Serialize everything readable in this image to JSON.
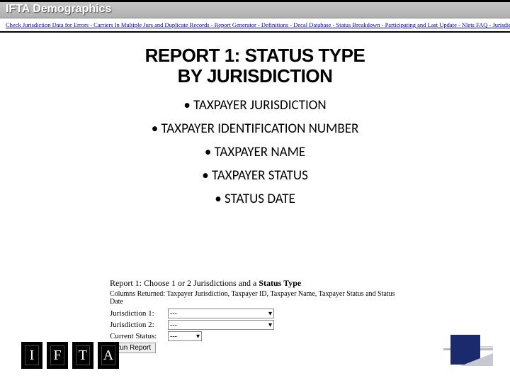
{
  "header": {
    "title": "IFTA Demographics"
  },
  "nav": {
    "text": "Check Jurisdiction Data for Errors - Carriers In Multiple Jurs and Duplicate Records - Report Generator - Definitions - Decal Database - Status Breakdown - Participating and Last Update - Nlets FAQ - Jurisdiction Contact Numbers - Web Services"
  },
  "report": {
    "title_line1": "REPORT 1: STATUS TYPE",
    "title_line2": "BY JURISDICTION",
    "title_fontsize": 26,
    "title_color": "#000000",
    "bullets": [
      "TAXPAYER JURISDICTION",
      "TAXPAYER IDENTIFICATION NUMBER",
      "TAXPAYER NAME",
      "TAXPAYER STATUS",
      "STATUS DATE"
    ],
    "bullet_fontsize": 19
  },
  "form": {
    "heading_prefix": "Report 1: Choose 1 or 2 Jurisdictions and a ",
    "heading_bold": "Status Type",
    "subtitle": "Columns Returned: Taxpayer Jurisdiction, Taxpayer ID, Taxpayer Name, Taxpayer Status and Status Date",
    "rows": [
      {
        "label": "Jurisdiction 1:",
        "value": "---"
      },
      {
        "label": "Jurisdiction 2:",
        "value": "---"
      },
      {
        "label": "Current Status:",
        "value": "---"
      }
    ],
    "button_label": "Run Report"
  },
  "logo": {
    "letters": [
      "I",
      "F",
      "T",
      "A"
    ]
  },
  "colors": {
    "header_gradient_top": "#c8c8c8",
    "header_gradient_bottom": "#b0b0b0",
    "nav_link": "#0000aa",
    "corner_square": "#1a2a6c",
    "background": "#ffffff"
  }
}
